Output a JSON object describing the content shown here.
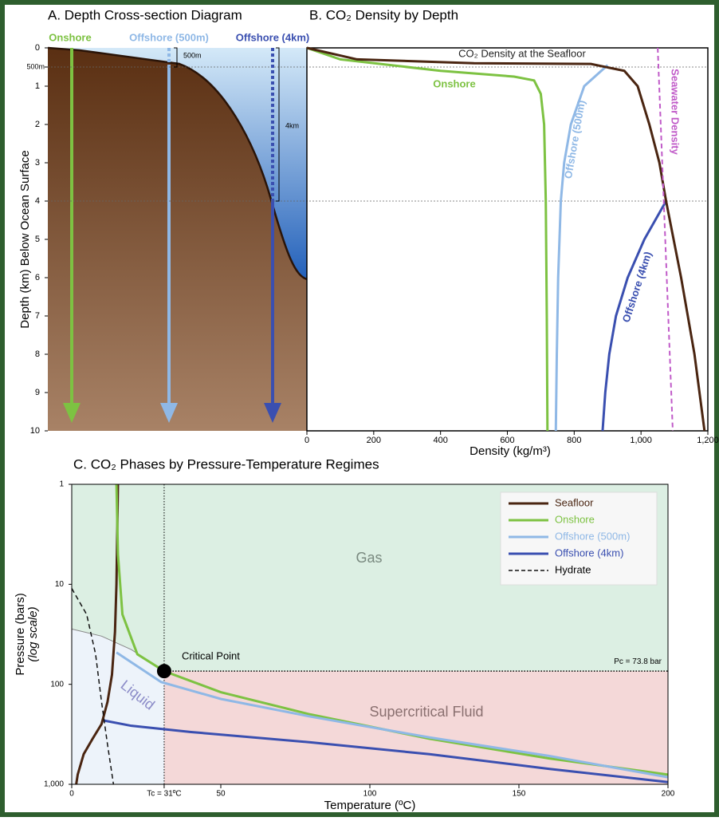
{
  "chart_data": [
    {
      "type": "cross-section",
      "title": "A. Depth Cross-section Diagram",
      "ylabel": "Depth (km) Below Ocean Surface",
      "ylim": [
        0,
        10
      ],
      "yticks": [
        0,
        {
          "value": 0.5,
          "label": "500m"
        },
        1,
        2,
        3,
        4,
        5,
        6,
        7,
        8,
        9,
        10
      ],
      "wells": [
        {
          "name": "Onshore",
          "color": "#7dc242",
          "seafloor": 0
        },
        {
          "name": "Offshore (500m)",
          "color": "#8fb8e6",
          "seafloor": 0.5
        },
        {
          "name": "Offshore (4km)",
          "color": "#3a4fb0",
          "seafloor": 4
        }
      ],
      "annotations": [
        "500m",
        "4km"
      ]
    },
    {
      "type": "line",
      "title": "B. CO₂ Density by Depth",
      "xlabel": "Density (kg/m³)",
      "xlim": [
        0,
        1200
      ],
      "xticks": [
        0,
        200,
        400,
        600,
        800,
        {
          "value": 1000,
          "label": "1,000"
        },
        {
          "value": 1200,
          "label": "1,200"
        }
      ],
      "ylim": [
        0,
        10
      ],
      "series": [
        {
          "name": "Onshore",
          "color": "#7dc242",
          "x": [
            0,
            100,
            400,
            620,
            680,
            700,
            710,
            715,
            718,
            720
          ],
          "values": [
            0,
            0.3,
            0.6,
            0.75,
            0.85,
            1.2,
            2,
            4,
            7,
            10
          ]
        },
        {
          "name": "Offshore (500m)",
          "color": "#8fb8e6",
          "x": [
            900,
            830,
            790,
            770,
            760,
            752,
            748,
            745
          ],
          "values": [
            0.45,
            1,
            2,
            3,
            4,
            6,
            8,
            10
          ]
        },
        {
          "name": "Offshore (4km)",
          "color": "#3a4fb0",
          "x": [
            1075,
            1010,
            960,
            925,
            905,
            893,
            885
          ],
          "values": [
            4,
            5,
            6,
            7,
            8,
            9,
            10
          ]
        },
        {
          "name": "CO₂ Density at the Seafloor",
          "color": "#4a2511",
          "x": [
            0,
            150,
            500,
            850,
            950,
            990,
            1025,
            1055,
            1075,
            1120,
            1160,
            1190
          ],
          "values": [
            0,
            0.3,
            0.4,
            0.42,
            0.6,
            1,
            2,
            3,
            4,
            6,
            8,
            10
          ]
        },
        {
          "name": "Seawater Density",
          "color": "#c05ac8",
          "dashed": true,
          "x": [
            1050,
            1095
          ],
          "values": [
            0,
            10
          ]
        }
      ]
    },
    {
      "type": "line",
      "title": "C. CO₂ Phases by Pressure-Temperature Regimes",
      "xlabel": "Temperature (ºC)",
      "ylabel": [
        "Pressure (bars)",
        "(log scale)"
      ],
      "log_scale": true,
      "legend": "top-right",
      "xlim": [
        0,
        200
      ],
      "xticks": [
        0,
        {
          "value": 31,
          "label": "Tc = 31ºC"
        },
        50,
        100,
        150,
        200
      ],
      "ylim": [
        1,
        1000
      ],
      "yticks": [
        1,
        10,
        100,
        {
          "value": 1000,
          "label": "1,000"
        }
      ],
      "regions": [
        "Gas",
        "Liquid",
        "Supercritical Fluid"
      ],
      "critical_point": {
        "label": "Critical Point",
        "x": 31,
        "y": 73.8,
        "pressure_label": "Pc = 73.8 bar"
      },
      "boundary": {
        "x": [
          0,
          10,
          20
        ],
        "values": [
          28,
          33,
          45
        ]
      },
      "series": [
        {
          "name": "Seafloor",
          "color": "#4a2511",
          "x": [
            1.5,
            2,
            4,
            7,
            10,
            12,
            13.5,
            14.5,
            15,
            15.5
          ],
          "values": [
            1000,
            800,
            500,
            350,
            250,
            150,
            80,
            30,
            10,
            1
          ]
        },
        {
          "name": "Onshore",
          "color": "#7dc242",
          "x": [
            15,
            15.5,
            17,
            22,
            31,
            50,
            80,
            120,
            160,
            200
          ],
          "values": [
            1,
            5,
            20,
            50,
            73.8,
            120,
            200,
            350,
            550,
            800
          ]
        },
        {
          "name": "Offshore (500m)",
          "color": "#8fb8e6",
          "x": [
            15,
            30,
            50,
            80,
            120,
            160,
            200
          ],
          "values": [
            48,
            95,
            140,
            210,
            340,
            520,
            850
          ]
        },
        {
          "name": "Offshore (4km)",
          "color": "#3a4fb0",
          "x": [
            10.7,
            20,
            40,
            80,
            120,
            160,
            200
          ],
          "values": [
            230,
            260,
            300,
            380,
            500,
            700,
            950
          ]
        },
        {
          "name": "Hydrate",
          "color": "#111111",
          "dashed": true,
          "x": [
            0,
            5,
            8,
            10,
            12,
            14
          ],
          "values": [
            11,
            20,
            50,
            150,
            400,
            1000
          ]
        }
      ]
    }
  ]
}
